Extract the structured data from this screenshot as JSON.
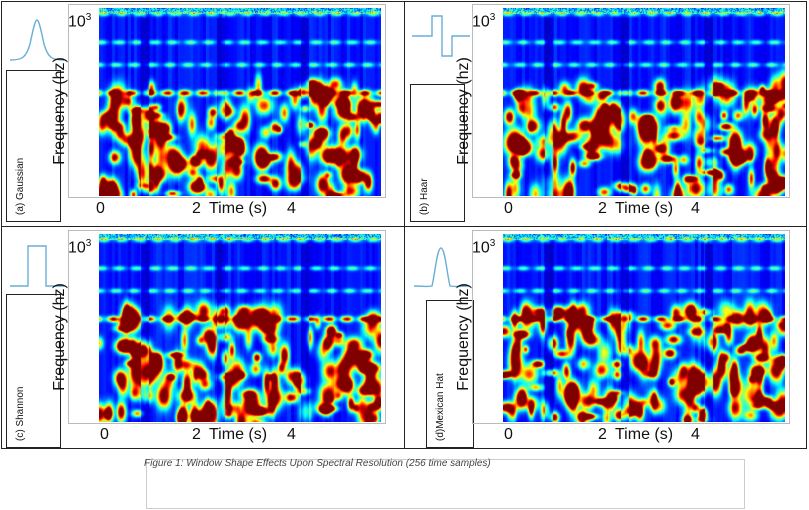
{
  "figure": {
    "caption": "Figure  1: Window Shape Effects Upon Spectral Resolution (256 time samples)"
  },
  "axes": {
    "ylabel": "Frequency (hz)",
    "ytick_base": "10",
    "ytick_exp": "3",
    "xtick_0": "0",
    "xtick_2": "2",
    "xlabel": "Time (s)",
    "xtick_4": "4"
  },
  "panels": [
    {
      "id": "a",
      "label": "(a)  Gaussian",
      "window_shape": "gaussian-icon"
    },
    {
      "id": "b",
      "label": "(b)  Haar",
      "window_shape": "haar-icon"
    },
    {
      "id": "c",
      "label": "(c)  Shannon",
      "window_shape": "shannon-icon"
    },
    {
      "id": "d",
      "label": "(d)Mexican Hat",
      "window_shape": "mexican-hat-icon"
    }
  ],
  "colors": {
    "wave_line": "#6aaed6",
    "colormap": [
      "#00008f",
      "#0000ff",
      "#0080ff",
      "#00ffff",
      "#80ff80",
      "#ffff00",
      "#ff8000",
      "#ff0000",
      "#800000"
    ]
  }
}
